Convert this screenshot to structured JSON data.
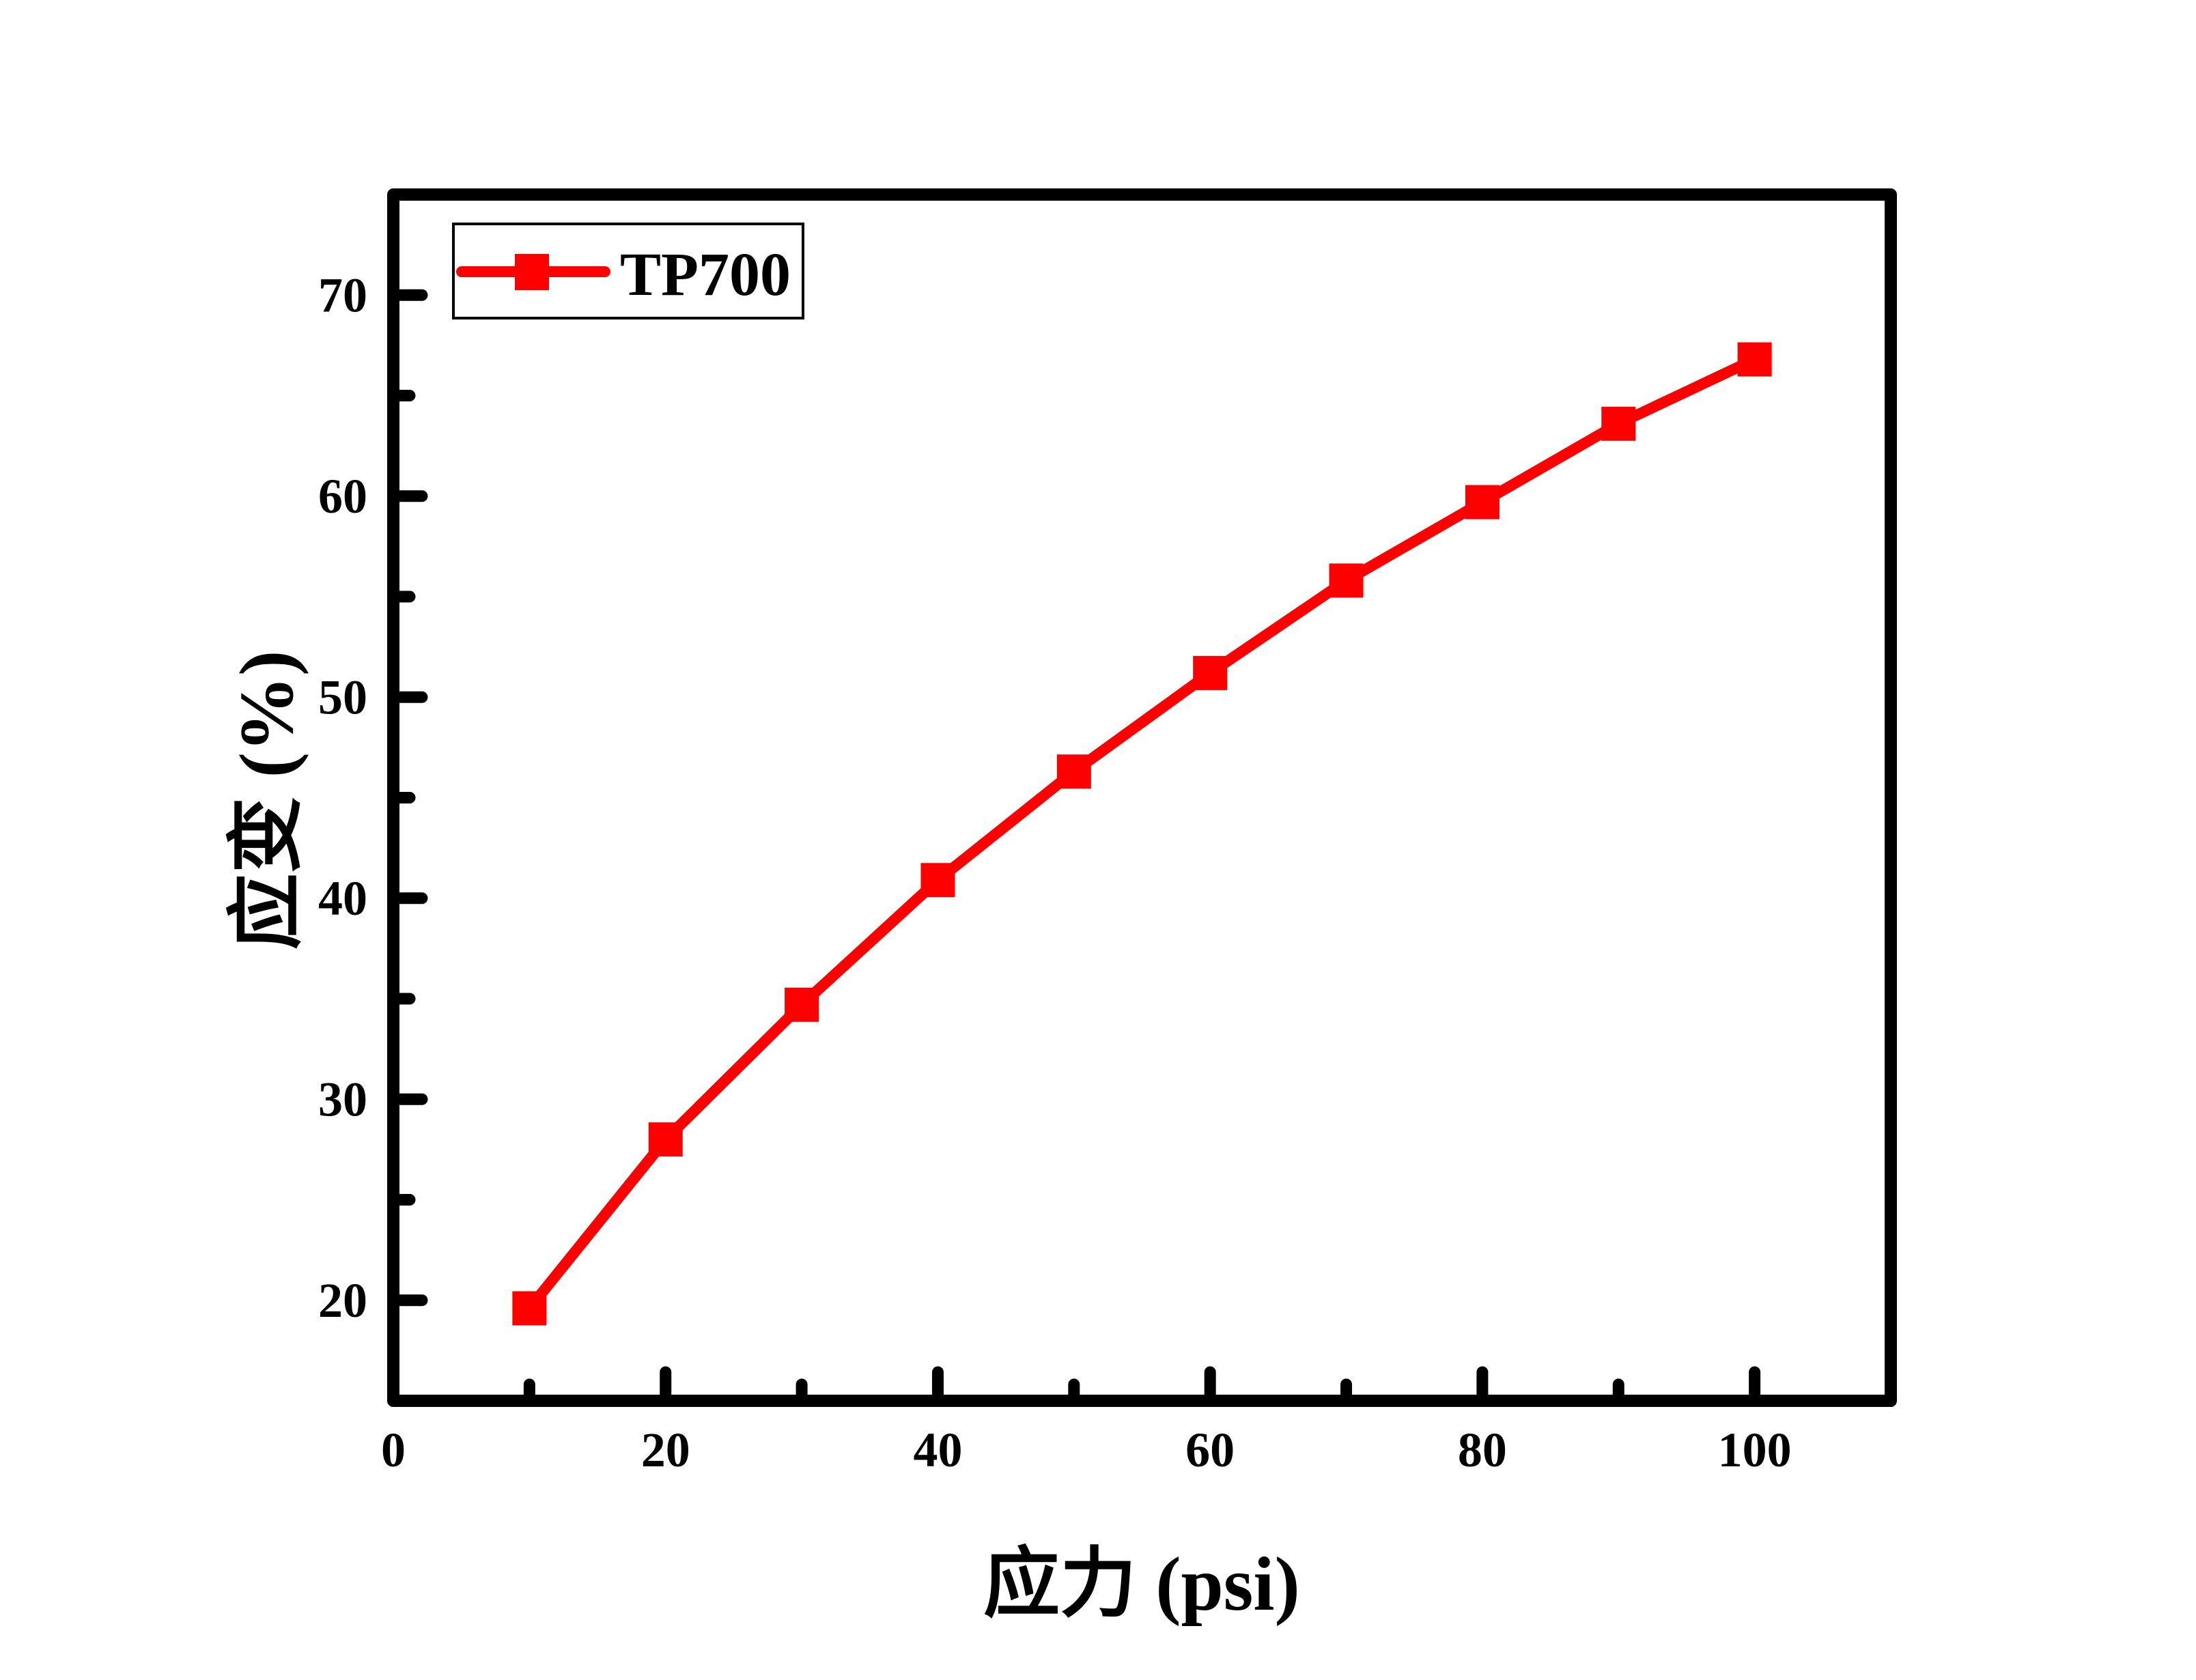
{
  "chart_data": {
    "type": "line",
    "title": "",
    "xlabel": "应力 (psi)",
    "ylabel": "应变 (%)",
    "x": [
      10,
      20,
      30,
      40,
      50,
      60,
      70,
      80,
      90,
      100
    ],
    "series": [
      {
        "name": "TP700",
        "color": "#ff0000",
        "marker": "square",
        "values": [
          19.6,
          28.0,
          34.7,
          40.9,
          46.3,
          51.2,
          55.8,
          59.7,
          63.6,
          66.8
        ]
      }
    ],
    "xlim": [
      0,
      110
    ],
    "ylim": [
      15,
      75
    ],
    "xticks": [
      0,
      20,
      40,
      60,
      80,
      100
    ],
    "xticks_minor": [
      10,
      30,
      50,
      70,
      90
    ],
    "yticks": [
      20,
      30,
      40,
      50,
      60,
      70
    ],
    "yticks_minor": [
      25,
      35,
      45,
      55,
      65
    ],
    "xtick_labels": [
      "0",
      "20",
      "40",
      "60",
      "80",
      "100"
    ],
    "ytick_labels": [
      "20",
      "30",
      "40",
      "50",
      "60",
      "70"
    ],
    "grid": false,
    "legend_position": "upper-left"
  },
  "colors": {
    "series": "#ff0000",
    "axis": "#000000",
    "background": "#ffffff"
  }
}
